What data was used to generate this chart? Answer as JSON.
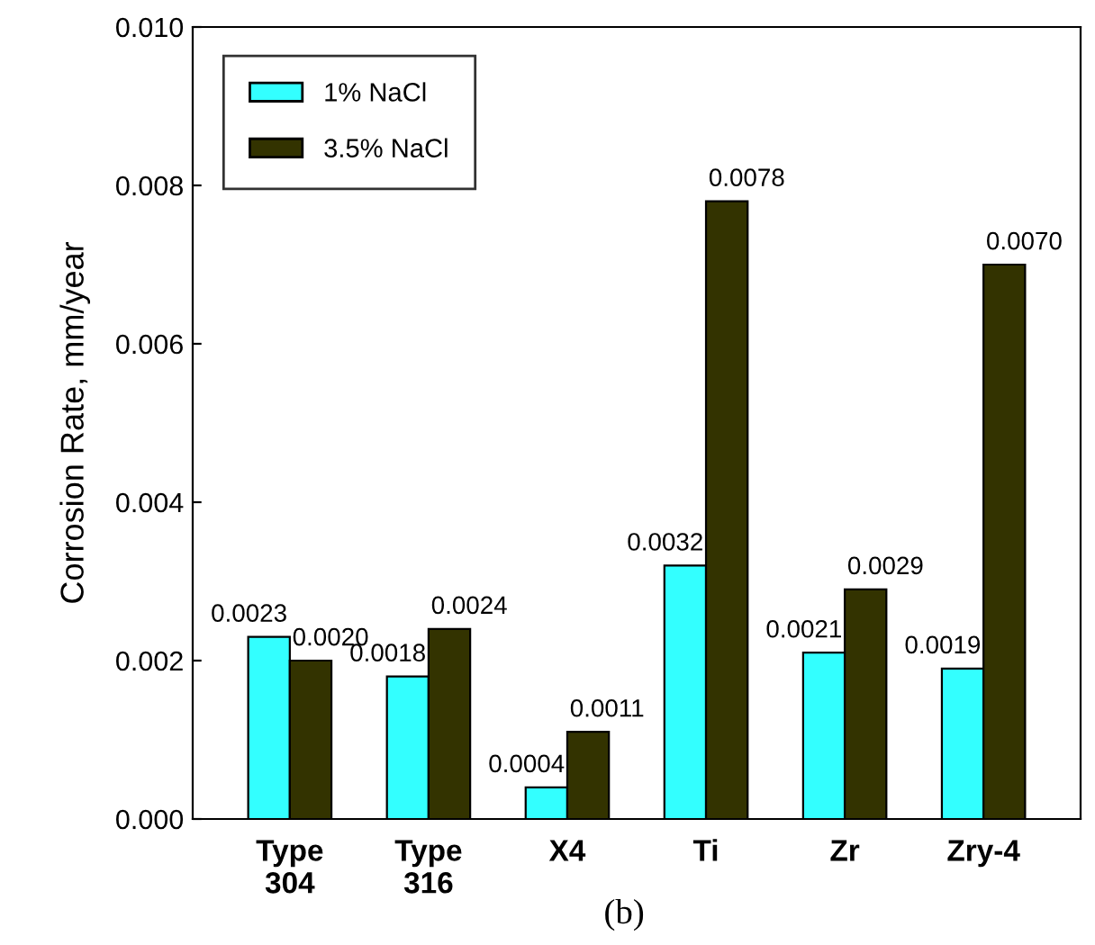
{
  "chart_data": {
    "type": "bar",
    "categories": [
      "Type\n304",
      "Type\n316",
      "X4",
      "Ti",
      "Zr",
      "Zry-4"
    ],
    "series": [
      {
        "name": "1% NaCl",
        "color": "#33ffff",
        "values": [
          0.0023,
          0.0018,
          0.0004,
          0.0032,
          0.0021,
          0.0019
        ],
        "value_labels": [
          "0.0023",
          "0.0018",
          "0.0004",
          "0.0032",
          "0.0021",
          "0.0019"
        ]
      },
      {
        "name": "3.5% NaCl",
        "color": "#333300",
        "values": [
          0.002,
          0.0024,
          0.0011,
          0.0078,
          0.0029,
          0.007
        ],
        "value_labels": [
          "0.0020",
          "0.0024",
          "0.0011",
          "0.0078",
          "0.0029",
          "0.0070"
        ]
      }
    ],
    "ylabel": "Corrosion Rate, mm/year",
    "ylim": [
      0,
      0.01
    ],
    "yticks": [
      {
        "value": 0,
        "label": "0.000"
      },
      {
        "value": 0.002,
        "label": "0.002"
      },
      {
        "value": 0.004,
        "label": "0.004"
      },
      {
        "value": 0.006,
        "label": "0.006"
      },
      {
        "value": 0.008,
        "label": "0.008"
      },
      {
        "value": 0.01,
        "label": "0.010"
      }
    ],
    "annotations": [
      "(b)"
    ],
    "legend": "top left",
    "grid": false
  }
}
